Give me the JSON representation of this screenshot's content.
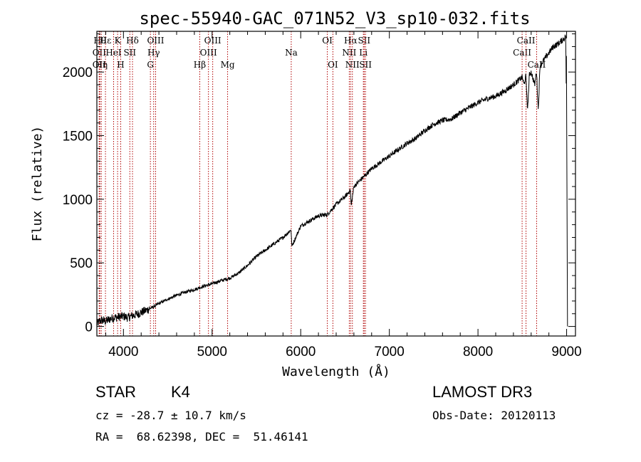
{
  "chart_data": {
    "type": "line",
    "title": "spec-55940-GAC_071N52_V3_sp10-032.fits",
    "xlabel": "Wavelength (Å)",
    "ylabel": "Flux (relative)",
    "xlim": [
      3700,
      9100
    ],
    "ylim": [
      -75,
      2320
    ],
    "x_ticks": [
      4000,
      5000,
      6000,
      7000,
      8000,
      9000
    ],
    "y_ticks": [
      0,
      500,
      1000,
      1500,
      2000
    ],
    "grid": false,
    "series": [
      {
        "name": "spectrum",
        "x": [
          3700,
          3750,
          3800,
          3850,
          3900,
          3950,
          4000,
          4050,
          4100,
          4150,
          4200,
          4300,
          4400,
          4500,
          4600,
          4700,
          4800,
          4900,
          5000,
          5100,
          5200,
          5300,
          5400,
          5500,
          5600,
          5700,
          5800,
          5890,
          5900,
          6000,
          6100,
          6200,
          6300,
          6400,
          6500,
          6560,
          6570,
          6600,
          6700,
          6800,
          6900,
          7000,
          7100,
          7200,
          7300,
          7400,
          7500,
          7600,
          7700,
          7800,
          7900,
          8000,
          8100,
          8200,
          8300,
          8400,
          8450,
          8500,
          8520,
          8540,
          8560,
          8580,
          8600,
          8640,
          8660,
          8680,
          8700,
          8750,
          8800,
          8850,
          8900,
          8950,
          8990,
          8995,
          9000,
          9010
        ],
        "y": [
          20,
          50,
          40,
          60,
          70,
          75,
          80,
          70,
          85,
          95,
          110,
          140,
          180,
          215,
          245,
          270,
          290,
          315,
          335,
          360,
          380,
          420,
          480,
          550,
          600,
          650,
          700,
          760,
          630,
          790,
          830,
          870,
          880,
          960,
          1020,
          1070,
          950,
          1100,
          1170,
          1240,
          1290,
          1340,
          1390,
          1440,
          1480,
          1540,
          1590,
          1620,
          1630,
          1680,
          1720,
          1760,
          1790,
          1810,
          1850,
          1900,
          1930,
          1960,
          1900,
          1970,
          1700,
          1980,
          2000,
          1900,
          2010,
          1700,
          2050,
          2100,
          2150,
          2200,
          2220,
          2250,
          2280,
          1900,
          2250,
          0
        ]
      }
    ],
    "line_markers": [
      {
        "wavelength": 3734,
        "label": "Hθ",
        "row": 0
      },
      {
        "wavelength": 3727,
        "label": "OII",
        "row": 1
      },
      {
        "wavelength": 3727,
        "label": "OII",
        "row": 2
      },
      {
        "wavelength": 3750,
        "label": "Hη",
        "row": 2
      },
      {
        "wavelength": 3797,
        "label": "Hε",
        "row": 0
      },
      {
        "wavelength": 3889,
        "label": "HeI",
        "row": 1
      },
      {
        "wavelength": 3934,
        "label": "K",
        "row": 0
      },
      {
        "wavelength": 3969,
        "label": "H",
        "row": 2
      },
      {
        "wavelength": 4072,
        "label": "SII",
        "row": 1
      },
      {
        "wavelength": 4102,
        "label": "Hδ",
        "row": 0
      },
      {
        "wavelength": 4304,
        "label": "G",
        "row": 2
      },
      {
        "wavelength": 4341,
        "label": "Hγ",
        "row": 1
      },
      {
        "wavelength": 4363,
        "label": "OIII",
        "row": 0
      },
      {
        "wavelength": 4861,
        "label": "Hβ",
        "row": 2
      },
      {
        "wavelength": 4959,
        "label": "OIII",
        "row": 1
      },
      {
        "wavelength": 5007,
        "label": "OIII",
        "row": 0
      },
      {
        "wavelength": 5175,
        "label": "Mg",
        "row": 2
      },
      {
        "wavelength": 5893,
        "label": "Na",
        "row": 1
      },
      {
        "wavelength": 6300,
        "label": "OI",
        "row": 0
      },
      {
        "wavelength": 6363,
        "label": "OI",
        "row": 2
      },
      {
        "wavelength": 6548,
        "label": "NII",
        "row": 1
      },
      {
        "wavelength": 6563,
        "label": "Hα",
        "row": 0
      },
      {
        "wavelength": 6583,
        "label": "NII",
        "row": 2
      },
      {
        "wavelength": 6707,
        "label": "Li",
        "row": 1
      },
      {
        "wavelength": 6716,
        "label": "SII",
        "row": 0
      },
      {
        "wavelength": 6731,
        "label": "SII",
        "row": 2
      },
      {
        "wavelength": 8498,
        "label": "CaII",
        "row": 1
      },
      {
        "wavelength": 8542,
        "label": "CaII",
        "row": 0
      },
      {
        "wavelength": 8662,
        "label": "CaII",
        "row": 2
      }
    ]
  },
  "info": {
    "object_class": "STAR",
    "subclass": "K4",
    "cz": "cz = -28.7 ± 10.7 km/s",
    "coords": "RA =  68.62398, DEC =  51.46141",
    "survey": "LAMOST DR3",
    "obs_date": "Obs-Date: 20120113"
  }
}
